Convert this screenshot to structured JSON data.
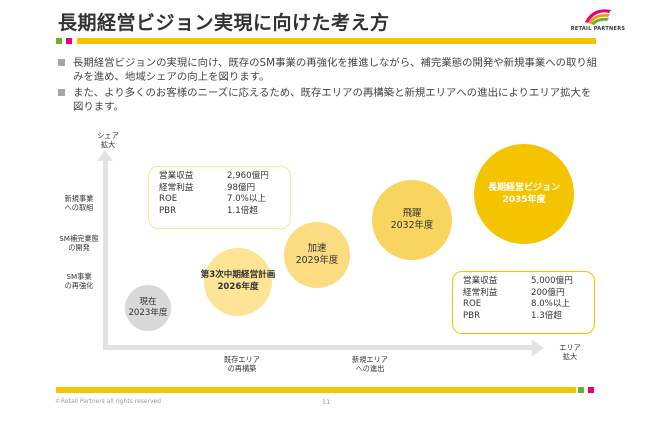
{
  "header": {
    "title": "長期経営ビジョン実現に向けた考え方",
    "logo_text": "RETAIL PARTNERS"
  },
  "colors": {
    "accent_yellow": "#f5c400",
    "light_yellow": "#fde497",
    "mid_yellow": "#f8d55f",
    "gray_circle": "#d9d9d9",
    "green": "#6ab42d",
    "magenta": "#e4007f"
  },
  "bullets": [
    "長期経営ビジョンの実現に向け、既存のSM事業の再強化を推進しながら、補完業態の開発や新規事業への取り組みを進め、地域シェアの向上を図ります。",
    "また、より多くのお客様のニーズに応えるため、既存エリアの再構築と新規エリアへの進出によりエリア拡大を図ります。"
  ],
  "diagram": {
    "y_axis_label": [
      "シェア",
      "拡大"
    ],
    "x_axis_label": [
      "エリア",
      "拡大"
    ],
    "y_levels": [
      [
        "新規事業",
        "への取組"
      ],
      [
        "SM補完業態",
        "の開発"
      ],
      [
        "SM事業",
        "の再強化"
      ]
    ],
    "x_levels": [
      [
        "既存エリア",
        "の再構築"
      ],
      [
        "新規エリア",
        "への進出"
      ]
    ],
    "stages": [
      {
        "line1": "現在",
        "line2": "2023年度"
      },
      {
        "line1": "第3次中期経営計画",
        "line2": "2026年度"
      },
      {
        "line1": "加速",
        "line2": "2029年度"
      },
      {
        "line1": "飛躍",
        "line2": "2032年度"
      },
      {
        "line1": "長期経営ビジョン",
        "line2": "2035年度"
      }
    ],
    "targets_2026": [
      {
        "label": "営業収益",
        "value": "2,960億円"
      },
      {
        "label": "経常利益",
        "value": "98億円"
      },
      {
        "label": "ROE",
        "value": "7.0%以上"
      },
      {
        "label": "PBR",
        "value": "1.1倍超"
      }
    ],
    "targets_2035": [
      {
        "label": "営業収益",
        "value": "5,000億円"
      },
      {
        "label": "経常利益",
        "value": "200億円"
      },
      {
        "label": "ROE",
        "value": "8.0%以上"
      },
      {
        "label": "PBR",
        "value": "1.3倍超"
      }
    ]
  },
  "footer": {
    "copyright": "©Retail Partners all rights reserved",
    "page_number": "11"
  }
}
